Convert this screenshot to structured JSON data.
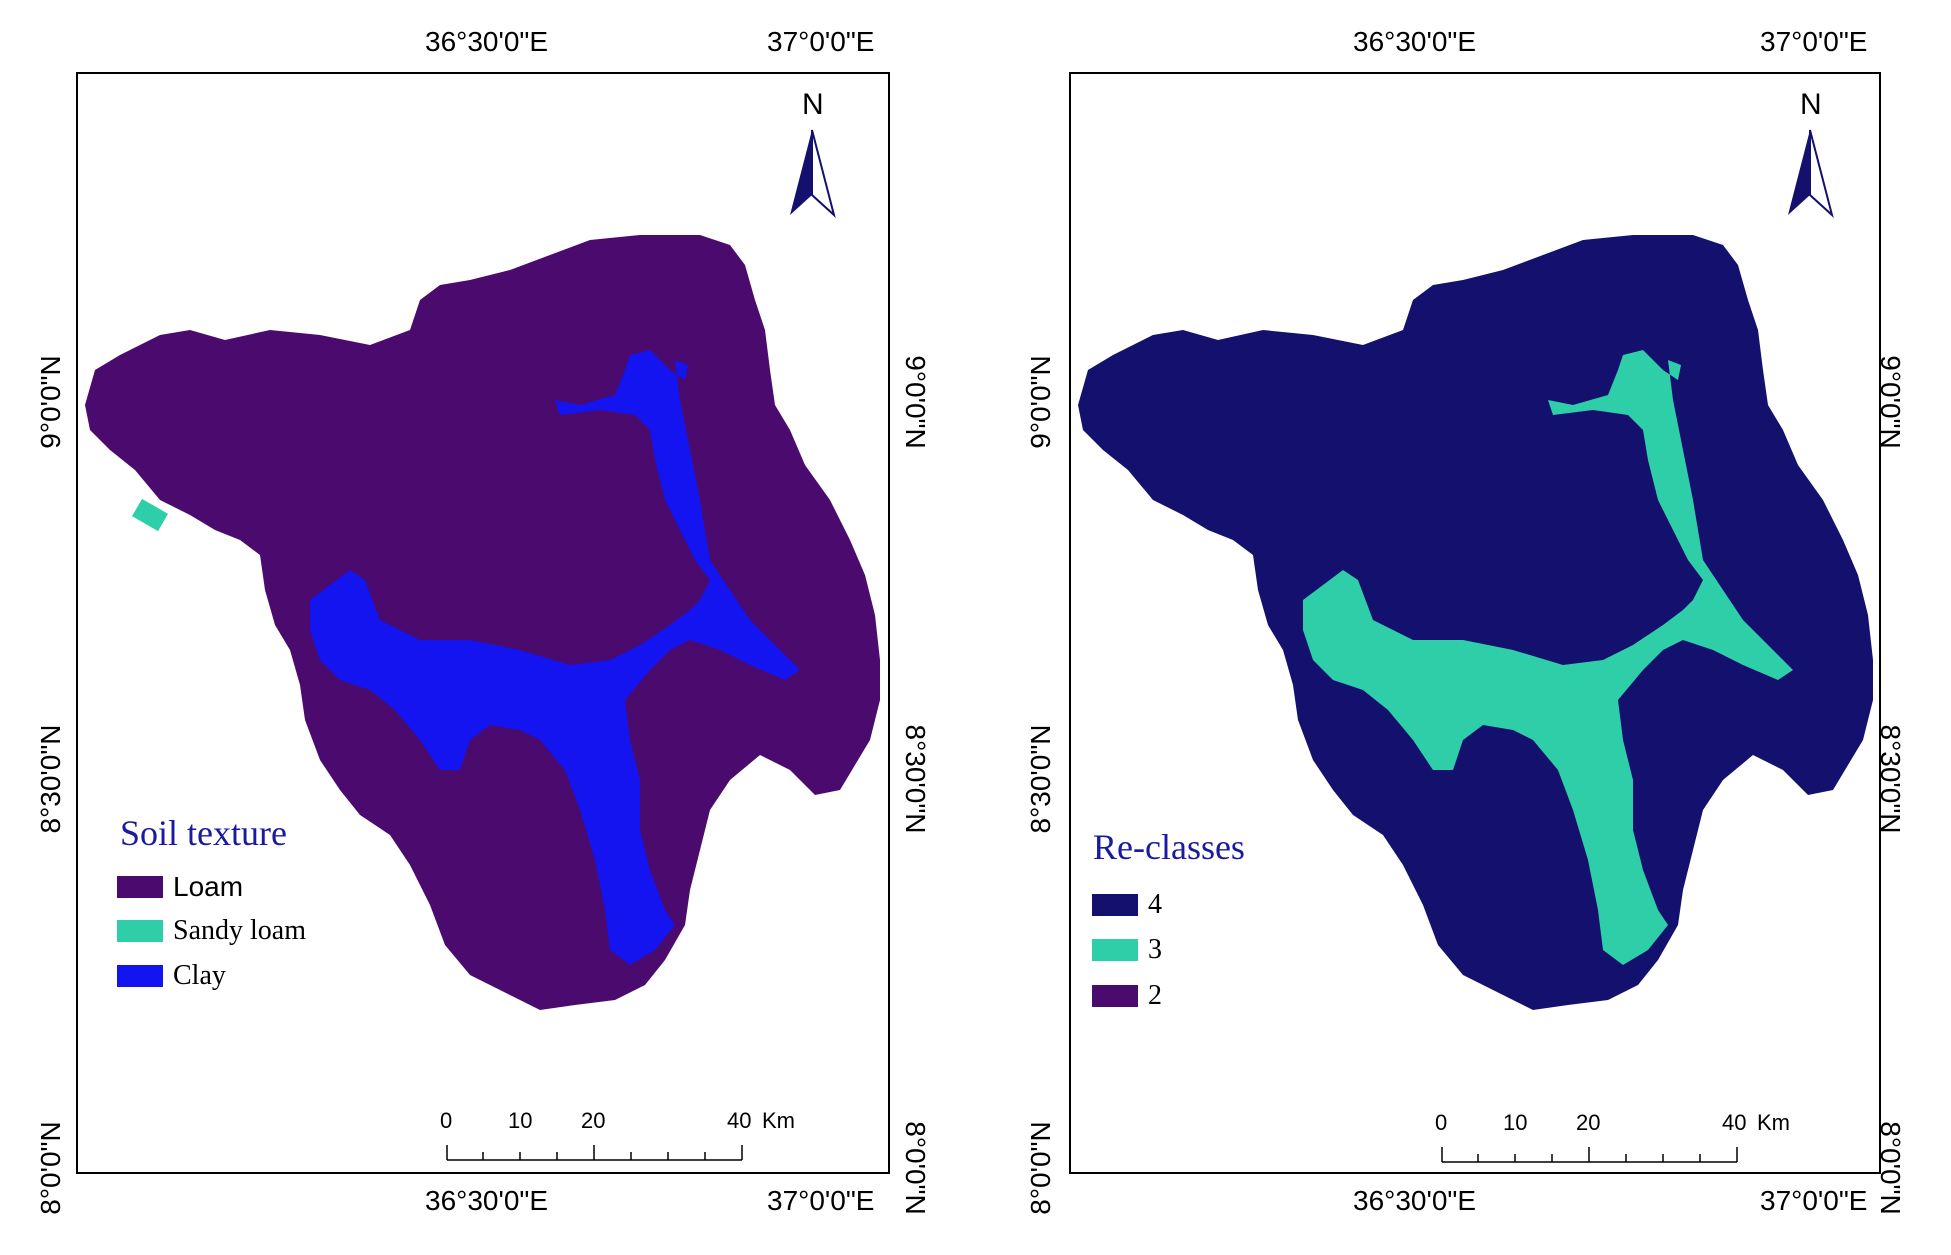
{
  "maps": [
    {
      "legend": {
        "title": "Soil texture",
        "items": [
          {
            "label": "Loam",
            "color": "#4a0a6e"
          },
          {
            "label": "Sandy loam",
            "color": "#2ecfa8"
          },
          {
            "label": "Clay",
            "color": "#1414f0"
          }
        ]
      },
      "background_color": "#4a0a6e",
      "channel_color": "#1414f0"
    },
    {
      "legend": {
        "title": "Re-classes",
        "items": [
          {
            "label": "4",
            "color": "#13106e"
          },
          {
            "label": "3",
            "color": "#2ecfa8"
          },
          {
            "label": "2",
            "color": "#4a0a6e"
          }
        ]
      },
      "background_color": "#13106e",
      "channel_color": "#2ecfa8"
    }
  ],
  "coordinates": {
    "lon_left": "36°30'0\"E",
    "lon_right": "37°0'0\"E",
    "lat_top": "9°0'0\"N",
    "lat_mid": "8°30'0\"N",
    "lat_bottom": "8°0'0\"N"
  },
  "north_arrow": {
    "label": "N",
    "icon": "north-arrow-icon"
  },
  "scale_bar": {
    "ticks": [
      "0",
      "10",
      "20",
      "40"
    ],
    "unit": "Km"
  }
}
